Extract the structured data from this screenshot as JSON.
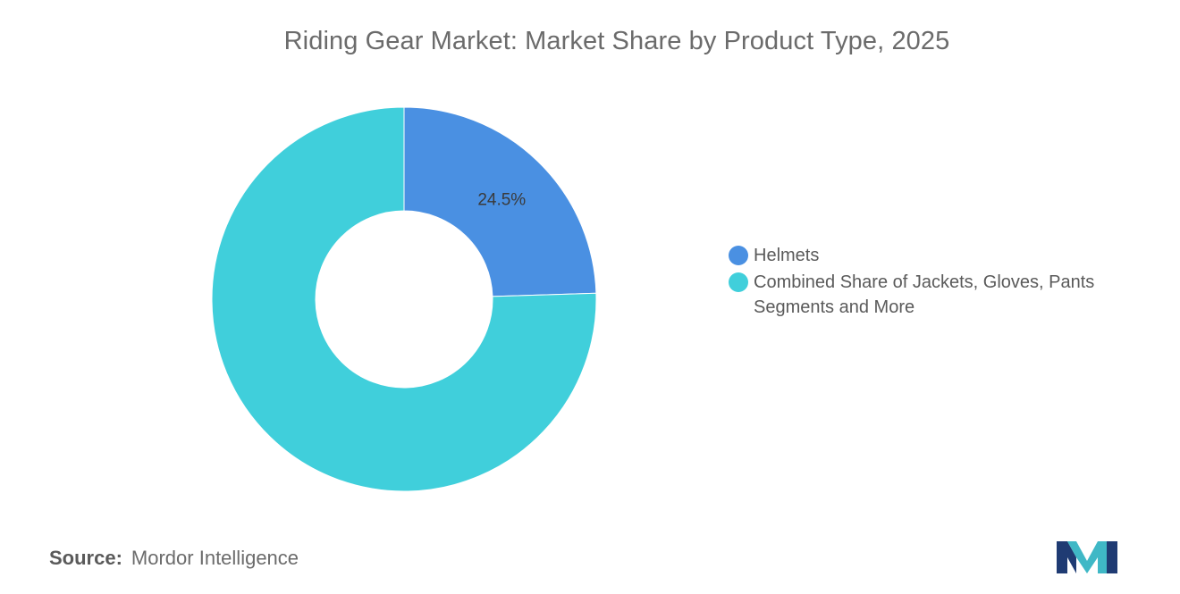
{
  "chart_data": {
    "type": "pie",
    "title": "Riding Gear Market: Market Share by Product Type, 2025",
    "donut": true,
    "slices": [
      {
        "label": "Helmets",
        "value": 24.5,
        "display": "24.5%",
        "color": "#4a90e2"
      },
      {
        "label": "Combined Share of Jackets, Gloves, Pants Segments and More",
        "value": 75.5,
        "display": "",
        "color": "#40cfdb"
      }
    ],
    "legend_position": "right"
  },
  "footer": {
    "source_label": "Source:",
    "source_value": "Mordor Intelligence"
  },
  "logo": {
    "icon": "mordor-intelligence-logo-icon",
    "colors": [
      "#1f3b73",
      "#3fb8c6"
    ]
  }
}
